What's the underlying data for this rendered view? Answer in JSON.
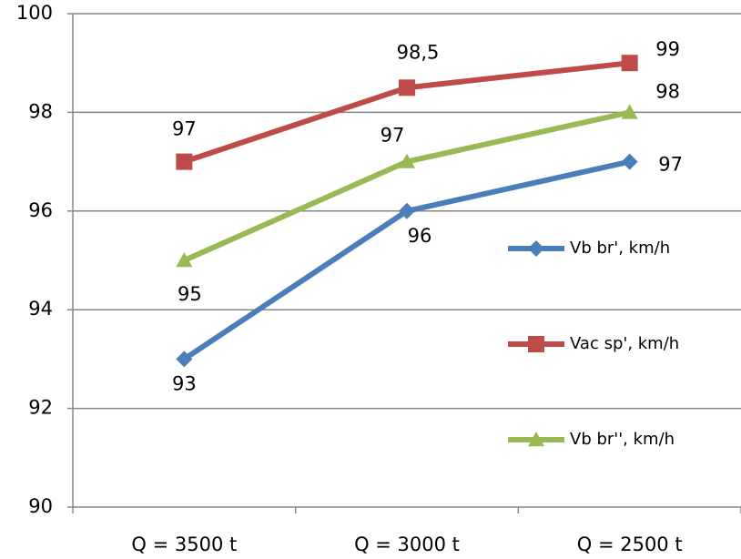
{
  "chart_data": {
    "type": "line",
    "categories": [
      "Q = 3500 t",
      "Q = 3000 t",
      "Q = 2500 t"
    ],
    "series": [
      {
        "name": "Vb br', km/h",
        "color": "#4a7ebb",
        "marker": "diamond",
        "values": [
          93,
          96,
          97
        ]
      },
      {
        "name": "Vac sp', km/h",
        "color": "#be4b48",
        "marker": "square",
        "values": [
          97,
          98.5,
          99
        ],
        "value_labels": [
          "97",
          "98,5",
          "99"
        ]
      },
      {
        "name": "Vb br'', km/h",
        "color": "#98b954",
        "marker": "triangle",
        "values": [
          95,
          97,
          98
        ]
      }
    ],
    "ylim": [
      90,
      100
    ],
    "yticks": [
      90,
      92,
      94,
      96,
      98,
      100
    ],
    "grid": true,
    "legend": "right"
  }
}
